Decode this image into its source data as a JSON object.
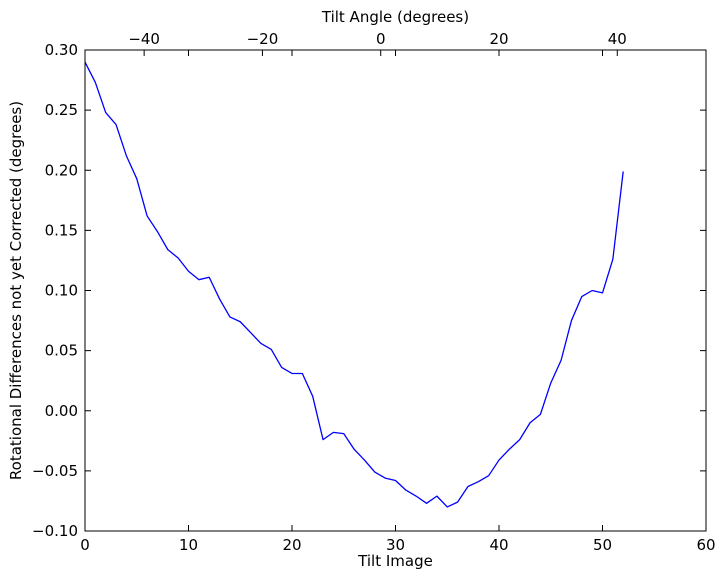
{
  "chart_data": {
    "type": "line",
    "title": "",
    "xlabel": "Tilt Image",
    "ylabel": "Rotational Differences not yet Corrected (degrees)",
    "x2label": "Tilt Angle (degrees)",
    "xlim": [
      0,
      60
    ],
    "ylim": [
      -0.1,
      0.3
    ],
    "x2lim": [
      -50,
      55
    ],
    "xticks": [
      0,
      10,
      20,
      30,
      40,
      50,
      60
    ],
    "xtick_labels": [
      "0",
      "10",
      "20",
      "30",
      "40",
      "50",
      "60"
    ],
    "yticks": [
      -0.1,
      -0.05,
      0.0,
      0.05,
      0.1,
      0.15,
      0.2,
      0.25,
      0.3
    ],
    "ytick_labels": [
      "−0.10",
      "−0.05",
      "0.00",
      "0.05",
      "0.10",
      "0.15",
      "0.20",
      "0.25",
      "0.30"
    ],
    "x2ticks": [
      -40,
      -20,
      0,
      20,
      40
    ],
    "x2tick_labels": [
      "−40",
      "−20",
      "0",
      "20",
      "40"
    ],
    "grid": false,
    "legend": "none",
    "series": [
      {
        "color": "#0000ff",
        "x": [
          0,
          1,
          2,
          3,
          4,
          5,
          6,
          7,
          8,
          9,
          10,
          11,
          12,
          13,
          14,
          15,
          16,
          17,
          18,
          19,
          20,
          21,
          22,
          23,
          24,
          25,
          26,
          27,
          28,
          29,
          30,
          31,
          32,
          33,
          34,
          35,
          36,
          37,
          38,
          39,
          40,
          41,
          42,
          43,
          44,
          45,
          46,
          47,
          48,
          49,
          50,
          51,
          52
        ],
        "y": [
          0.29,
          0.273,
          0.248,
          0.238,
          0.212,
          0.193,
          0.162,
          0.149,
          0.134,
          0.127,
          0.116,
          0.109,
          0.111,
          0.093,
          0.078,
          0.074,
          0.065,
          0.056,
          0.051,
          0.036,
          0.031,
          0.031,
          0.012,
          -0.024,
          -0.018,
          -0.019,
          -0.032,
          -0.041,
          -0.051,
          -0.056,
          -0.058,
          -0.066,
          -0.071,
          -0.077,
          -0.071,
          -0.08,
          -0.076,
          -0.063,
          -0.059,
          -0.054,
          -0.041,
          -0.032,
          -0.024,
          -0.01,
          -0.003,
          0.023,
          0.042,
          0.075,
          0.095,
          0.1,
          0.098,
          0.126,
          0.199
        ]
      }
    ]
  }
}
